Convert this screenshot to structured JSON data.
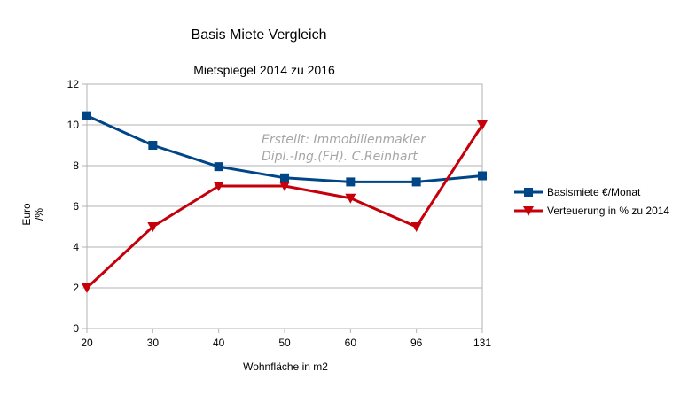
{
  "chart_data": {
    "type": "line",
    "title": "Basis Miete Vergleich",
    "subtitle": "Mietspiegel 2014 zu 2016",
    "xlabel": "Wohnfläche in m2",
    "ylabel_lines": [
      "Euro",
      "/%"
    ],
    "categories": [
      "20",
      "30",
      "40",
      "50",
      "60",
      "96",
      "131"
    ],
    "ylim": [
      0,
      12
    ],
    "yticks": [
      0,
      2,
      4,
      6,
      8,
      10,
      12
    ],
    "grid": true,
    "legend_position": "right",
    "watermark_lines": [
      "Erstellt: Immobilienmakler",
      "Dipl.-Ing.(FH). C.Reinhart"
    ],
    "series": [
      {
        "name": "Basismiete €/Monat",
        "color": "#004586",
        "marker": "square",
        "values": [
          10.45,
          9.0,
          7.95,
          7.4,
          7.2,
          7.2,
          7.5
        ]
      },
      {
        "name": "Verteuerung in % zu 2014",
        "color": "#c5000b",
        "marker": "triangle-down",
        "values": [
          2,
          5,
          7,
          7,
          6.4,
          5,
          10
        ]
      }
    ]
  }
}
